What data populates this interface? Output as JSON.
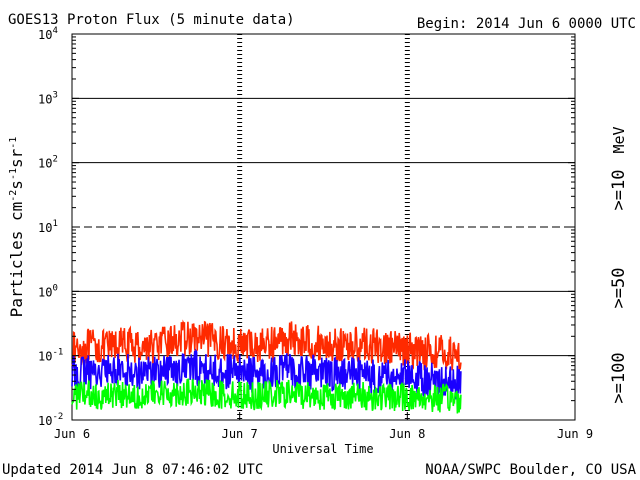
{
  "chart_data": {
    "type": "line",
    "title": "GOES13 Proton Flux (5 minute data)",
    "begin_label": "Begin: 2014 Jun 6 0000 UTC",
    "xlabel": "Universal Time",
    "ylabel": {
      "parts": [
        "Particles cm",
        "-2",
        "s",
        "-1",
        "sr",
        "-1"
      ]
    },
    "x_ticks": [
      "Jun 6",
      "Jun 7",
      "Jun 8",
      "Jun 9"
    ],
    "x_domain_days": [
      0,
      3
    ],
    "y_scale": "log",
    "y_ticks": [
      {
        "base": "10",
        "exp": "-2",
        "value": 0.01
      },
      {
        "base": "10",
        "exp": "-1",
        "value": 0.1
      },
      {
        "base": "10",
        "exp": "0",
        "value": 1
      },
      {
        "base": "10",
        "exp": "1",
        "value": 10
      },
      {
        "base": "10",
        "exp": "2",
        "value": 100
      },
      {
        "base": "10",
        "exp": "3",
        "value": 1000
      },
      {
        "base": "10",
        "exp": "4",
        "value": 10000
      }
    ],
    "ylim": [
      0.01,
      10000
    ],
    "reference_lines": [
      {
        "value": 0.1,
        "style": "solid"
      },
      {
        "value": 1,
        "style": "solid"
      },
      {
        "value": 10,
        "style": "dashed"
      },
      {
        "value": 100,
        "style": "solid"
      },
      {
        "value": 1000,
        "style": "solid"
      }
    ],
    "day_markers": [
      1,
      2
    ],
    "legend": {
      "unit": "MeV",
      "placement": "right"
    },
    "series": [
      {
        "name": ">=10",
        "color": "#ff2a00",
        "x": [
          0,
          0.1,
          0.2,
          0.3,
          0.4,
          0.5,
          0.6,
          0.7,
          0.8,
          0.9,
          1.0,
          1.1,
          1.2,
          1.3,
          1.4,
          1.5,
          1.6,
          1.7,
          1.8,
          1.9,
          2.0,
          2.1,
          2.2,
          2.3,
          2.32
        ],
        "y": [
          0.13,
          0.15,
          0.14,
          0.16,
          0.15,
          0.15,
          0.18,
          0.2,
          0.19,
          0.17,
          0.16,
          0.15,
          0.17,
          0.2,
          0.18,
          0.16,
          0.15,
          0.16,
          0.15,
          0.14,
          0.13,
          0.13,
          0.12,
          0.11,
          0.11
        ]
      },
      {
        "name": ">=50",
        "color": "#1a00ff",
        "x": [
          0,
          0.1,
          0.2,
          0.3,
          0.4,
          0.5,
          0.6,
          0.7,
          0.8,
          0.9,
          1.0,
          1.1,
          1.2,
          1.3,
          1.4,
          1.5,
          1.6,
          1.7,
          1.8,
          1.9,
          2.0,
          2.1,
          2.2,
          2.3,
          2.32
        ],
        "y": [
          0.055,
          0.06,
          0.06,
          0.065,
          0.06,
          0.06,
          0.065,
          0.07,
          0.065,
          0.06,
          0.06,
          0.055,
          0.06,
          0.065,
          0.06,
          0.055,
          0.055,
          0.055,
          0.05,
          0.05,
          0.05,
          0.045,
          0.045,
          0.04,
          0.04
        ]
      },
      {
        "name": ">=100",
        "color": "#00ff00",
        "x": [
          0,
          0.1,
          0.2,
          0.3,
          0.4,
          0.5,
          0.6,
          0.7,
          0.8,
          0.9,
          1.0,
          1.1,
          1.2,
          1.3,
          1.4,
          1.5,
          1.6,
          1.7,
          1.8,
          1.9,
          2.0,
          2.1,
          2.2,
          2.3,
          2.32
        ],
        "y": [
          0.025,
          0.026,
          0.025,
          0.027,
          0.026,
          0.026,
          0.028,
          0.028,
          0.027,
          0.026,
          0.026,
          0.025,
          0.026,
          0.027,
          0.026,
          0.025,
          0.025,
          0.025,
          0.024,
          0.024,
          0.024,
          0.023,
          0.023,
          0.022,
          0.022
        ]
      }
    ]
  },
  "footer": {
    "updated": "Updated 2014 Jun  8 07:46:02 UTC",
    "credit": "NOAA/SWPC Boulder, CO USA"
  }
}
